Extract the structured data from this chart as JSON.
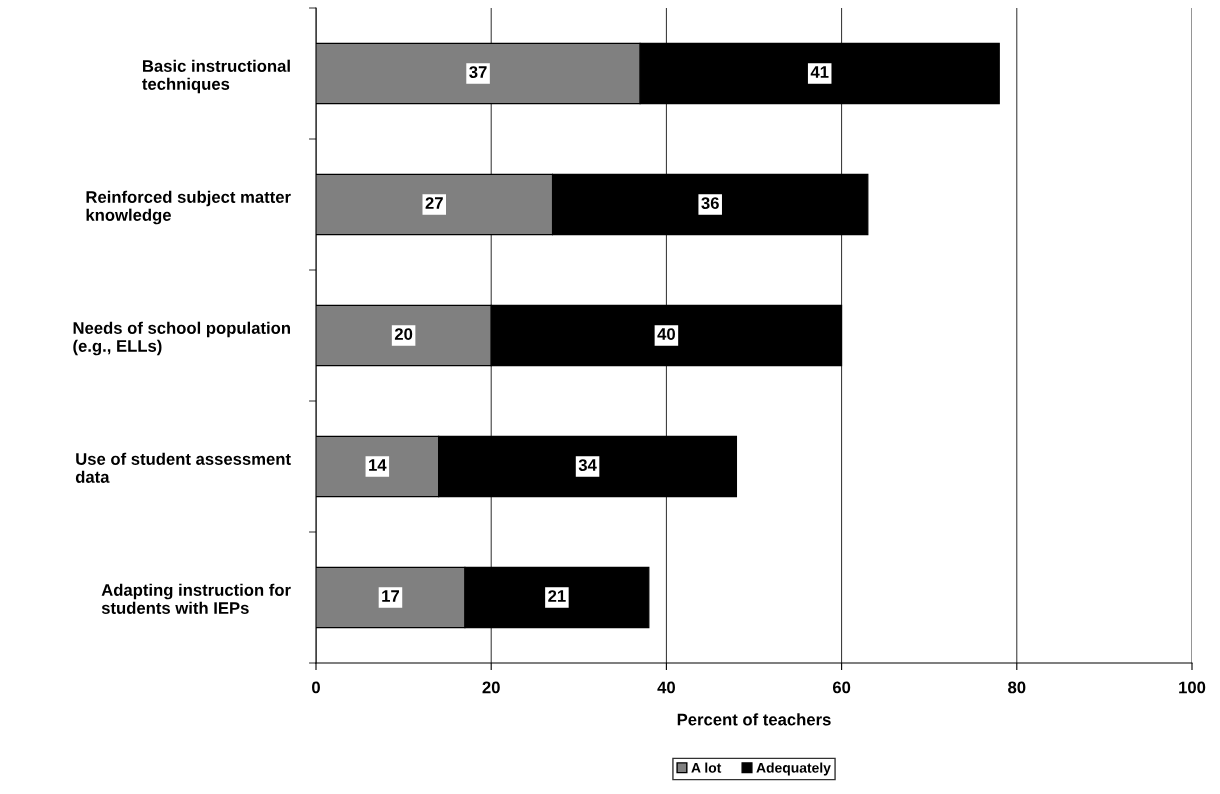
{
  "chart_data": {
    "type": "bar",
    "orientation": "horizontal",
    "stacked": true,
    "categories": [
      "Basic instructional\ntechniques",
      "Reinforced subject matter\nknowledge",
      "Needs of school population\n(e.g., ELLs)",
      "Use of student assessment\ndata",
      "Adapting instruction for\nstudents with IEPs"
    ],
    "series": [
      {
        "name": "A lot",
        "color": "#808080",
        "values": [
          37,
          27,
          20,
          14,
          17
        ]
      },
      {
        "name": "Adequately",
        "color": "#000000",
        "values": [
          41,
          36,
          40,
          34,
          21
        ]
      }
    ],
    "xlabel": "Percent of teachers",
    "xlim": [
      0,
      100
    ],
    "xticks": [
      0,
      20,
      40,
      60,
      80,
      100
    ],
    "grid": "x",
    "legend": "bottom",
    "data_labels": true
  }
}
